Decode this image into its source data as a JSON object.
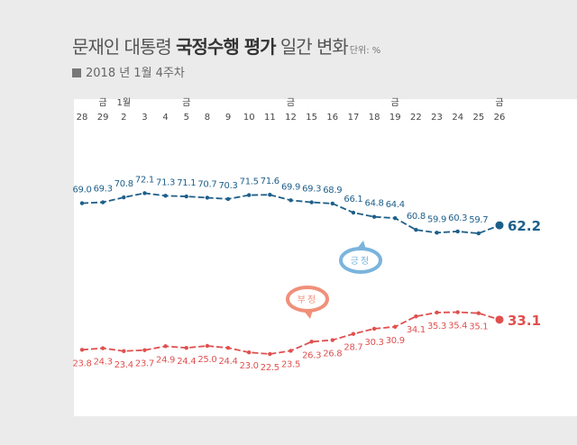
{
  "header": {
    "title_a": "문재인 대통령 ",
    "title_b": "국정수행 평가",
    "title_c": " 일간 변화",
    "unit": "단위: %",
    "subtitle": "2018 년 1월 4주차"
  },
  "colors": {
    "positive": "#1d5f8a",
    "negative": "#e0504f",
    "positive_bubble": "#7ab4dd",
    "negative_bubble": "#f0907a",
    "text": "#444444"
  },
  "chart_data": {
    "type": "line",
    "categories": [
      "28",
      "29",
      "2",
      "3",
      "4",
      "5",
      "8",
      "9",
      "10",
      "11",
      "12",
      "15",
      "16",
      "17",
      "18",
      "19",
      "22",
      "23",
      "24",
      "25",
      "26"
    ],
    "category_tags": [
      "",
      "금",
      "1월",
      "",
      "",
      "금",
      "",
      "",
      "",
      "",
      "금",
      "",
      "",
      "",
      "",
      "금",
      "",
      "",
      "",
      "",
      "금"
    ],
    "series": [
      {
        "name": "긍정",
        "values": [
          69.0,
          69.3,
          70.8,
          72.1,
          71.3,
          71.1,
          70.7,
          70.3,
          71.5,
          71.6,
          69.9,
          69.3,
          68.9,
          66.1,
          64.8,
          64.4,
          60.8,
          59.9,
          60.3,
          59.7,
          62.2
        ],
        "labels": [
          "69.0",
          "69.3",
          "70.8",
          "72.1",
          "71.3",
          "71.1",
          "70.7",
          "70.3",
          "71.5",
          "71.6",
          "69.9",
          "69.3",
          "68.9",
          "66.1",
          "64.8",
          "64.4",
          "60.8",
          "59.9",
          "60.3",
          "59.7",
          "62.2"
        ]
      },
      {
        "name": "부정",
        "values": [
          23.8,
          24.3,
          23.4,
          23.7,
          24.9,
          24.4,
          25.0,
          24.4,
          23.0,
          22.5,
          23.5,
          26.3,
          26.8,
          28.7,
          30.3,
          30.9,
          34.1,
          35.3,
          35.4,
          35.1,
          33.1
        ],
        "labels": [
          "23.8",
          "24.3",
          "23.4",
          "23.7",
          "24.9",
          "24.4",
          "25.0",
          "24.4",
          "23.0",
          "22.5",
          "23.5",
          "26.3",
          "26.8",
          "28.7",
          "30.3",
          "30.9",
          "34.1",
          "35.3",
          "35.4",
          "35.1",
          "33.1"
        ]
      }
    ]
  }
}
